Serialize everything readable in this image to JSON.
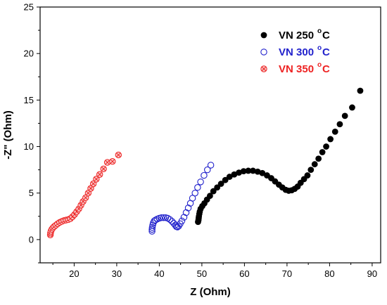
{
  "chart_data": {
    "type": "scatter",
    "xlabel": "Z (Ohm)",
    "ylabel": "-Z\" (Ohm)",
    "xlim": [
      12,
      92
    ],
    "ylim": [
      -2.5,
      25
    ],
    "x_ticks": [
      20,
      30,
      40,
      50,
      60,
      70,
      80,
      90
    ],
    "y_ticks": [
      0,
      5,
      10,
      15,
      20,
      25
    ],
    "grid": false,
    "legend_position": "top-right",
    "series": [
      {
        "name": "VN 250",
        "name_sup": "o",
        "name_unit": "C",
        "marker": "filled-circle",
        "color": "#000000",
        "points": [
          [
            49.1,
            1.9
          ],
          [
            49.2,
            2.1
          ],
          [
            49.25,
            2.3
          ],
          [
            49.3,
            2.5
          ],
          [
            49.4,
            2.75
          ],
          [
            49.5,
            3.0
          ],
          [
            49.7,
            3.3
          ],
          [
            50.1,
            3.6
          ],
          [
            50.6,
            3.9
          ],
          [
            51.2,
            4.3
          ],
          [
            51.9,
            4.7
          ],
          [
            52.7,
            5.2
          ],
          [
            53.6,
            5.6
          ],
          [
            54.5,
            6.0
          ],
          [
            55.5,
            6.4
          ],
          [
            56.5,
            6.75
          ],
          [
            57.6,
            7.0
          ],
          [
            58.7,
            7.2
          ],
          [
            59.8,
            7.35
          ],
          [
            60.9,
            7.4
          ],
          [
            62.0,
            7.4
          ],
          [
            63.1,
            7.3
          ],
          [
            64.2,
            7.15
          ],
          [
            65.3,
            6.9
          ],
          [
            66.3,
            6.6
          ],
          [
            67.2,
            6.25
          ],
          [
            68.1,
            5.9
          ],
          [
            68.9,
            5.6
          ],
          [
            69.7,
            5.35
          ],
          [
            70.4,
            5.25
          ],
          [
            71.1,
            5.3
          ],
          [
            71.8,
            5.45
          ],
          [
            72.5,
            5.7
          ],
          [
            73.2,
            6.1
          ],
          [
            74.0,
            6.5
          ],
          [
            74.8,
            6.9
          ],
          [
            75.6,
            7.5
          ],
          [
            76.5,
            8.1
          ],
          [
            77.4,
            8.7
          ],
          [
            78.3,
            9.4
          ],
          [
            79.2,
            10.0
          ],
          [
            80.2,
            10.8
          ],
          [
            81.3,
            11.6
          ],
          [
            82.4,
            12.4
          ],
          [
            83.6,
            13.3
          ],
          [
            85.3,
            14.2
          ],
          [
            87.2,
            16.0
          ]
        ]
      },
      {
        "name": "VN 300",
        "name_sup": "o",
        "name_unit": "C",
        "marker": "open-circle",
        "color": "#2222cc",
        "points": [
          [
            38.3,
            0.9
          ],
          [
            38.3,
            1.1
          ],
          [
            38.35,
            1.3
          ],
          [
            38.45,
            1.55
          ],
          [
            38.6,
            1.8
          ],
          [
            38.8,
            2.0
          ],
          [
            39.1,
            2.1
          ],
          [
            39.5,
            2.2
          ],
          [
            40.0,
            2.3
          ],
          [
            40.5,
            2.35
          ],
          [
            41.0,
            2.35
          ],
          [
            41.5,
            2.35
          ],
          [
            42.0,
            2.3
          ],
          [
            42.5,
            2.15
          ],
          [
            43.0,
            1.95
          ],
          [
            43.4,
            1.75
          ],
          [
            43.75,
            1.55
          ],
          [
            44.0,
            1.4
          ],
          [
            44.25,
            1.35
          ],
          [
            44.55,
            1.45
          ],
          [
            44.9,
            1.7
          ],
          [
            45.3,
            2.0
          ],
          [
            45.8,
            2.4
          ],
          [
            46.3,
            2.9
          ],
          [
            46.8,
            3.4
          ],
          [
            47.3,
            3.9
          ],
          [
            47.8,
            4.45
          ],
          [
            48.4,
            5.0
          ],
          [
            49.0,
            5.6
          ],
          [
            49.7,
            6.2
          ],
          [
            50.5,
            6.9
          ],
          [
            51.3,
            7.5
          ],
          [
            52.1,
            8.0
          ]
        ]
      },
      {
        "name": "VN  350",
        "name_sup": "o",
        "name_unit": "C",
        "marker": "circle-cross",
        "color": "#ee2222",
        "points": [
          [
            14.4,
            0.5
          ],
          [
            14.45,
            0.7
          ],
          [
            14.55,
            0.9
          ],
          [
            14.75,
            1.1
          ],
          [
            15.0,
            1.25
          ],
          [
            15.3,
            1.4
          ],
          [
            15.7,
            1.55
          ],
          [
            16.1,
            1.7
          ],
          [
            16.6,
            1.85
          ],
          [
            17.1,
            1.95
          ],
          [
            17.6,
            2.05
          ],
          [
            18.1,
            2.1
          ],
          [
            18.6,
            2.15
          ],
          [
            19.1,
            2.25
          ],
          [
            19.6,
            2.45
          ],
          [
            20.1,
            2.7
          ],
          [
            20.6,
            3.0
          ],
          [
            21.1,
            3.3
          ],
          [
            21.6,
            3.7
          ],
          [
            22.1,
            4.1
          ],
          [
            22.7,
            4.5
          ],
          [
            23.3,
            5.0
          ],
          [
            23.9,
            5.5
          ],
          [
            24.5,
            6.0
          ],
          [
            25.2,
            6.5
          ],
          [
            26.0,
            7.0
          ],
          [
            26.9,
            7.6
          ],
          [
            27.8,
            8.3
          ],
          [
            29.0,
            8.4
          ],
          [
            30.4,
            9.1
          ]
        ]
      }
    ]
  }
}
